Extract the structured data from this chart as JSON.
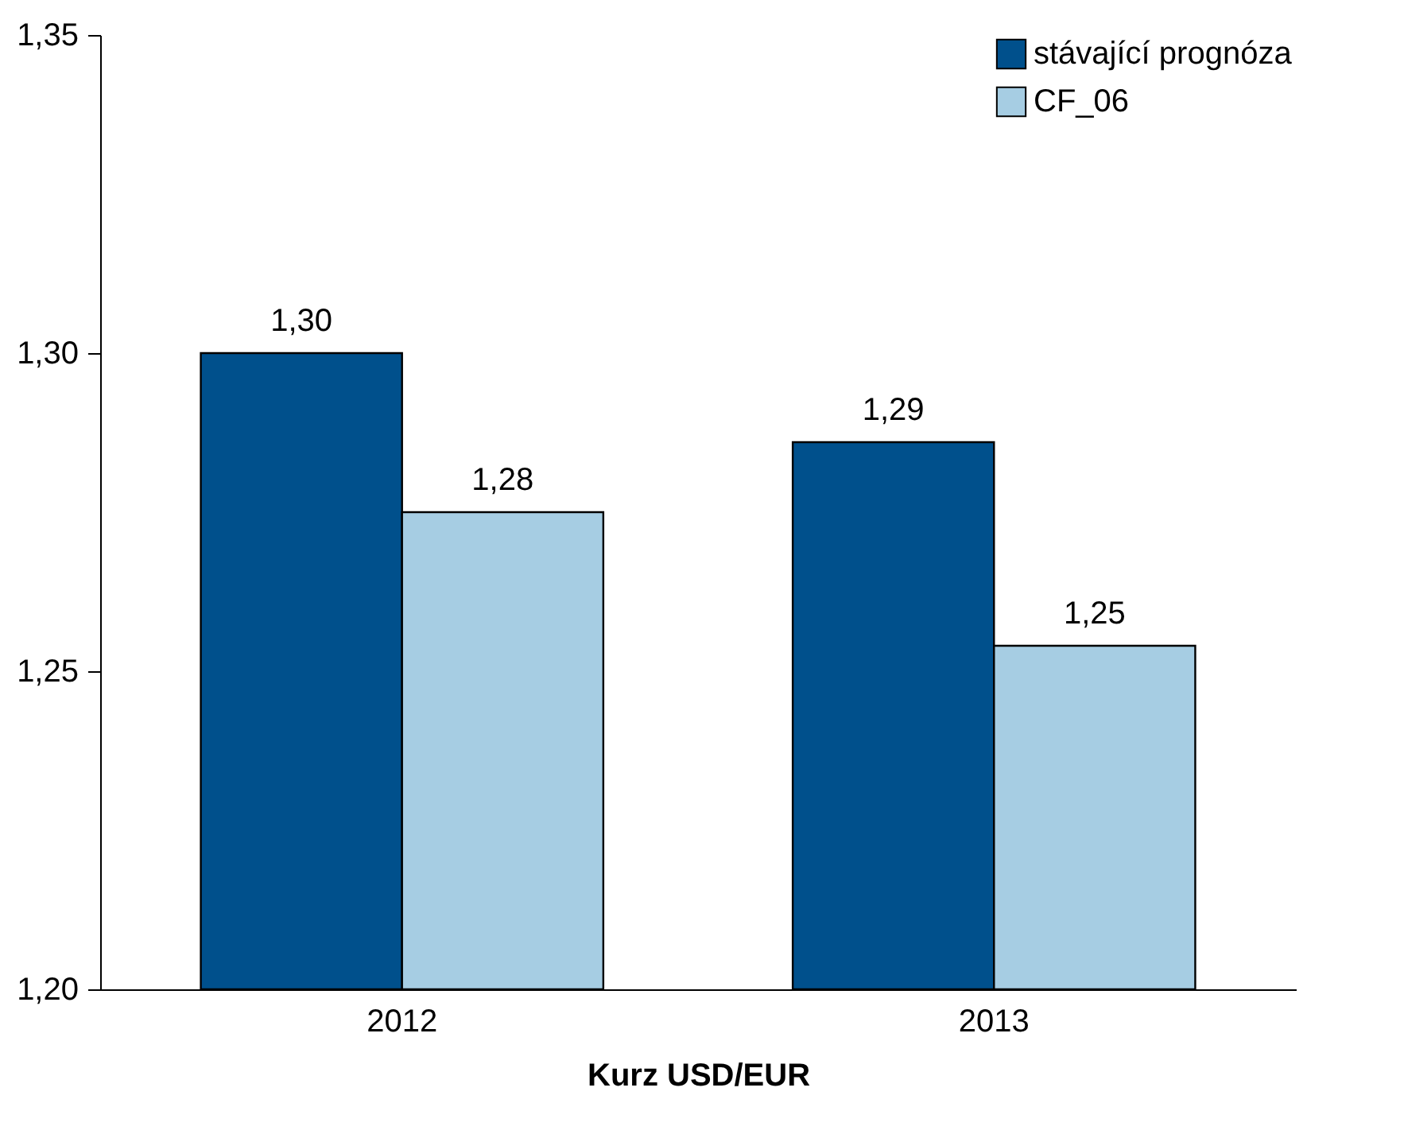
{
  "chart_data": {
    "type": "bar",
    "xlabel": "Kurz USD/EUR",
    "categories": [
      "2012",
      "2013"
    ],
    "series": [
      {
        "name": "stávající prognóza",
        "color": "#00508c",
        "values": [
          1.3,
          1.286
        ],
        "value_labels": [
          "1,30",
          "1,29"
        ]
      },
      {
        "name": "CF_06",
        "color": "#a6cde3",
        "values": [
          1.275,
          1.254
        ],
        "value_labels": [
          "1,28",
          "1,25"
        ]
      }
    ],
    "ylim": [
      1.2,
      1.35
    ],
    "yticks": [
      {
        "value": 1.2,
        "label": "1,20"
      },
      {
        "value": 1.25,
        "label": "1,25"
      },
      {
        "value": 1.3,
        "label": "1,30"
      },
      {
        "value": 1.35,
        "label": "1,35"
      }
    ],
    "grid": false,
    "legend": "top right"
  }
}
